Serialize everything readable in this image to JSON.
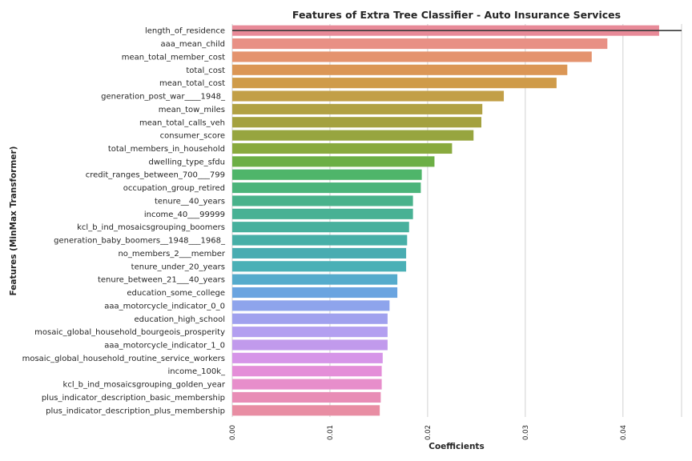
{
  "chart_data": {
    "type": "bar",
    "orientation": "horizontal",
    "title": "Features of Extra Tree Classifier - Auto Insurance Services",
    "xlabel": "Coefficients",
    "ylabel": "Features (MinMax Transformer)",
    "xlim": [
      0.0,
      0.046
    ],
    "xticks": [
      0.0,
      0.01,
      0.02,
      0.03,
      0.04
    ],
    "xtick_labels": [
      "0.00",
      "0.01",
      "0.02",
      "0.03",
      "0.04"
    ],
    "grid": true,
    "reference_line": {
      "value": 0.0437
    },
    "categories": [
      "length_of_residence",
      "aaa_mean_child",
      "mean_total_member_cost",
      "total_cost",
      "mean_total_cost",
      "generation_post_war____1948_",
      "mean_tow_miles",
      "mean_total_calls_veh",
      "consumer_score",
      "total_members_in_household",
      "dwelling_type_sfdu",
      "credit_ranges_between_700___799",
      "occupation_group_retired",
      "tenure__40_years",
      "income_40___99999",
      "kcl_b_ind_mosaicsgrouping_boomers",
      "generation_baby_boomers__1948___1968_",
      "no_members_2___member",
      "tenure_under_20_years",
      "tenure_between_21___40_years",
      "education_some_college",
      "aaa_motorcycle_indicator_0_0",
      "education_high_school",
      "mosaic_global_household_bourgeois_prosperity",
      "aaa_motorcycle_indicator_1_0",
      "mosaic_global_household_routine_service_workers",
      "income_100k_",
      "kcl_b_ind_mosaicsgrouping_golden_year",
      "plus_indicator_description_basic_membership",
      "plus_indicator_description_plus_membership"
    ],
    "values": [
      0.0437,
      0.0384,
      0.0368,
      0.0343,
      0.0332,
      0.0278,
      0.0256,
      0.0255,
      0.0247,
      0.0225,
      0.0207,
      0.0194,
      0.0193,
      0.0185,
      0.0185,
      0.0181,
      0.0179,
      0.0178,
      0.0178,
      0.0169,
      0.0169,
      0.0161,
      0.0159,
      0.0159,
      0.0159,
      0.0154,
      0.0153,
      0.0153,
      0.0152,
      0.0151
    ],
    "colors": [
      "#e88a98",
      "#e89085",
      "#e4936e",
      "#db9655",
      "#cf9b49",
      "#c29f47",
      "#b1a143",
      "#a4a13f",
      "#97a53f",
      "#89aa3e",
      "#6caf45",
      "#4fb56a",
      "#4bb47a",
      "#49b28b",
      "#48b194",
      "#48b09d",
      "#47afa7",
      "#49acb1",
      "#4ab0b6",
      "#55abcc",
      "#6aa4e0",
      "#8ea4ec",
      "#a0a1ee",
      "#b39ff0",
      "#c19aec",
      "#d695e8",
      "#e48ed8",
      "#e78ecb",
      "#e88db6",
      "#e88da3"
    ]
  }
}
